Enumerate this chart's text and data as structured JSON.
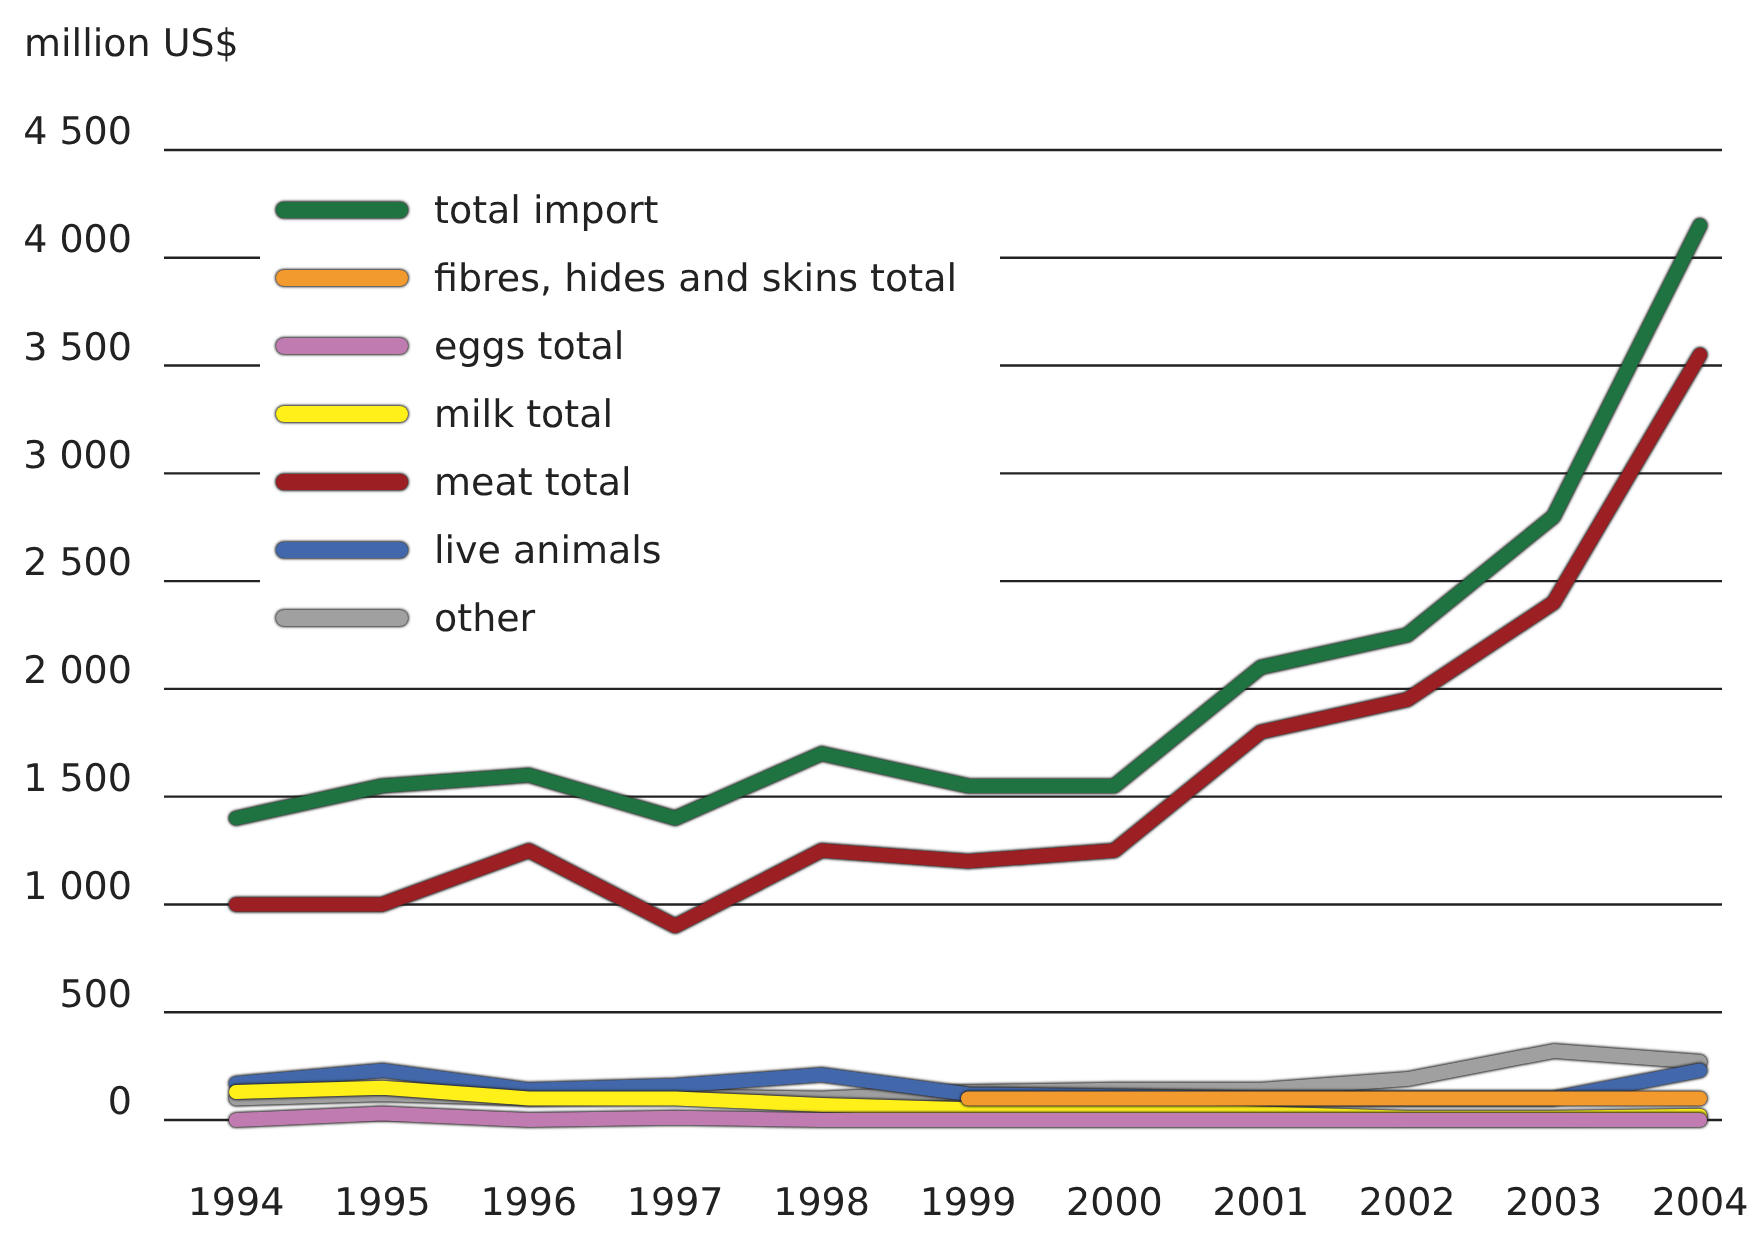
{
  "chart_data": {
    "type": "line",
    "ylabel": "million US$",
    "categories": [
      "1994",
      "1995",
      "1996",
      "1997",
      "1998",
      "1999",
      "2000",
      "2001",
      "2002",
      "2003",
      "2004"
    ],
    "ylim": [
      0,
      4500
    ],
    "yticks": [
      {
        "value": 0,
        "label": "0"
      },
      {
        "value": 500,
        "label": "500"
      },
      {
        "value": 1000,
        "label": "1 000"
      },
      {
        "value": 1500,
        "label": "1 500"
      },
      {
        "value": 2000,
        "label": "2 000"
      },
      {
        "value": 2500,
        "label": "2 500"
      },
      {
        "value": 3000,
        "label": "3 000"
      },
      {
        "value": 3500,
        "label": "3 500"
      },
      {
        "value": 4000,
        "label": "4 000"
      },
      {
        "value": 4500,
        "label": "4 500"
      }
    ],
    "grid": "y",
    "legend": "top left",
    "marker": "none",
    "line_style": "solid",
    "series": [
      {
        "name": "total import",
        "color": "#1e7341",
        "values": [
          1400,
          1550,
          1600,
          1400,
          1700,
          1550,
          1550,
          2100,
          2250,
          2800,
          4150
        ]
      },
      {
        "name": "fibres, hides and skins total",
        "color": "#f39a2e",
        "values": [
          null,
          null,
          null,
          null,
          null,
          100,
          100,
          100,
          100,
          100,
          100
        ]
      },
      {
        "name": "eggs total",
        "color": "#c07bb0",
        "values": [
          0,
          30,
          0,
          10,
          0,
          0,
          0,
          0,
          0,
          0,
          0
        ]
      },
      {
        "name": "milk total",
        "color": "#fff01a",
        "values": [
          130,
          150,
          100,
          100,
          70,
          50,
          50,
          30,
          10,
          10,
          20
        ]
      },
      {
        "name": "meat total",
        "color": "#9b1f23",
        "values": [
          1000,
          1000,
          1250,
          900,
          1250,
          1200,
          1250,
          1800,
          1950,
          2400,
          3550
        ]
      },
      {
        "name": "live animals",
        "color": "#4268ab",
        "values": [
          170,
          230,
          140,
          160,
          210,
          120,
          110,
          100,
          100,
          100,
          230
        ]
      },
      {
        "name": "other",
        "color": "#a0a0a0",
        "values": [
          100,
          120,
          100,
          110,
          100,
          130,
          140,
          140,
          190,
          320,
          270
        ]
      }
    ]
  }
}
